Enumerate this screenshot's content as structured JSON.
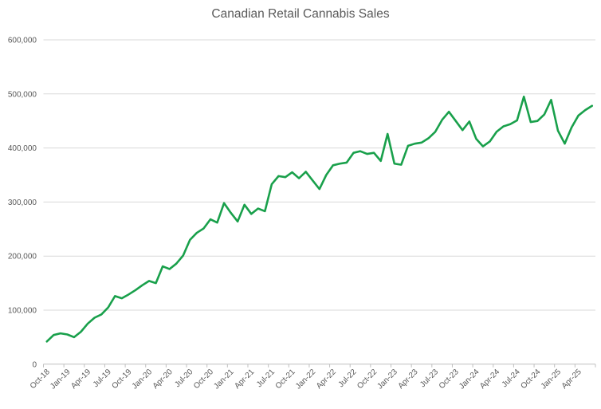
{
  "chart_data": {
    "type": "line",
    "title": "Canadian Retail Cannabis Sales",
    "xlabel": "",
    "ylabel": "",
    "ylim": [
      0,
      600000
    ],
    "ytick_step": 100000,
    "grid": "horizontal",
    "legend": "none",
    "x_label_interval": 3,
    "x_label_rotation_deg": -45,
    "line_color": "#19A04B",
    "gridline_color": "#D9D9D9",
    "axis_line_color": "#BFBFBF",
    "text_color": "#595959",
    "y_tick_labels": [
      "0",
      "100,000",
      "200,000",
      "300,000",
      "400,000",
      "500,000",
      "600,000"
    ],
    "x_tick_labels": [
      "Oct-18",
      "Jan-19",
      "Apr-19",
      "Jul-19",
      "Oct-19",
      "Jan-20",
      "Apr-20",
      "Jul-20",
      "Oct-20",
      "Jan-21",
      "Apr-21",
      "Jul-21",
      "Oct-21",
      "Jan-22",
      "Apr-22",
      "Jul-22",
      "Oct-22",
      "Jan-23",
      "Apr-23",
      "Jul-23",
      "Oct-23",
      "Jan-24",
      "Apr-24",
      "Jul-24",
      "Oct-24",
      "Jan-25",
      "Apr-25"
    ],
    "x": [
      "Oct-18",
      "Nov-18",
      "Dec-18",
      "Jan-19",
      "Feb-19",
      "Mar-19",
      "Apr-19",
      "May-19",
      "Jun-19",
      "Jul-19",
      "Aug-19",
      "Sep-19",
      "Oct-19",
      "Nov-19",
      "Dec-19",
      "Jan-20",
      "Feb-20",
      "Mar-20",
      "Apr-20",
      "May-20",
      "Jun-20",
      "Jul-20",
      "Aug-20",
      "Sep-20",
      "Oct-20",
      "Nov-20",
      "Dec-20",
      "Jan-21",
      "Feb-21",
      "Mar-21",
      "Apr-21",
      "May-21",
      "Jun-21",
      "Jul-21",
      "Aug-21",
      "Sep-21",
      "Oct-21",
      "Nov-21",
      "Dec-21",
      "Jan-22",
      "Feb-22",
      "Mar-22",
      "Apr-22",
      "May-22",
      "Jun-22",
      "Jul-22",
      "Aug-22",
      "Sep-22",
      "Oct-22",
      "Nov-22",
      "Dec-22",
      "Jan-23",
      "Feb-23",
      "Mar-23",
      "Apr-23",
      "May-23",
      "Jun-23",
      "Jul-23",
      "Aug-23",
      "Sep-23",
      "Oct-23",
      "Nov-23",
      "Dec-23",
      "Jan-24",
      "Feb-24",
      "Mar-24",
      "Apr-24",
      "May-24",
      "Jun-24",
      "Jul-24",
      "Aug-24",
      "Sep-24",
      "Oct-24",
      "Nov-24",
      "Dec-24",
      "Jan-25",
      "Feb-25",
      "Mar-25",
      "Apr-25",
      "May-25",
      "Jun-25"
    ],
    "values": [
      42000,
      54000,
      57000,
      55000,
      50000,
      60000,
      75000,
      86000,
      92000,
      105000,
      126000,
      122000,
      129000,
      137000,
      146000,
      154000,
      150000,
      181000,
      176000,
      186000,
      201000,
      230000,
      243000,
      251000,
      268000,
      262000,
      298000,
      280000,
      264000,
      295000,
      278000,
      288000,
      283000,
      333000,
      348000,
      346000,
      355000,
      344000,
      356000,
      340000,
      324000,
      350000,
      368000,
      371000,
      373000,
      391000,
      394000,
      389000,
      391000,
      376000,
      426000,
      371000,
      369000,
      404000,
      408000,
      410000,
      418000,
      430000,
      452000,
      467000,
      450000,
      433000,
      449000,
      417000,
      403000,
      412000,
      430000,
      440000,
      444000,
      451000,
      495000,
      448000,
      450000,
      462000,
      489000,
      432000,
      408000,
      438000,
      460000,
      470000,
      478000
    ]
  }
}
